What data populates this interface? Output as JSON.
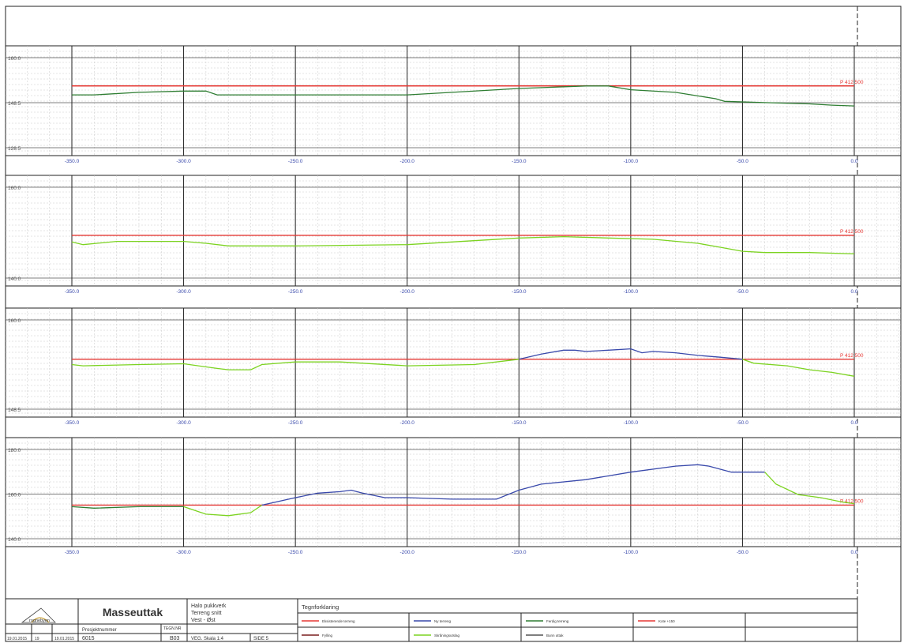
{
  "sheet": {
    "title": "Masseuttak",
    "logo_text": "rognebyen",
    "project_lines": [
      "Halo pukkverk",
      "Terreng snitt",
      "Vest - Øst"
    ],
    "meta": {
      "date_left": "19.01.2015",
      "revision": "19",
      "date_right": "19.01.2015",
      "project_label": "Prosjektnummer",
      "project_number": "6015",
      "drawing_label": "TEGN.NR",
      "drawing_number": "B03",
      "scale": "VEG. Skala 1:4",
      "sheet": "SIDE 5"
    },
    "legend_title": "Tegnforklaring",
    "legend": [
      {
        "label": "Eksisterende terreng",
        "color": "#e53935"
      },
      {
        "label": "Ny terreng",
        "color": "#3949ab"
      },
      {
        "label": "Ferdig terreng",
        "color": "#2e7d32"
      },
      {
        "label": "Kote +150",
        "color": "#e53935"
      },
      {
        "label": "Fylling",
        "color": "#7a1f1f"
      },
      {
        "label": "Skråningsutslag",
        "color": "#7cd321"
      },
      {
        "label": "Bunn uttak",
        "color": "#555555"
      }
    ]
  },
  "chart_data": [
    {
      "type": "line",
      "xlim": [
        -350,
        0
      ],
      "ylim": [
        125,
        165
      ],
      "ytick_labels": [
        "160.0",
        "148.5",
        "128.5"
      ],
      "xtick_labels": [
        "-350.0",
        "-300.0",
        "-250.0",
        "-200.0",
        "-150.0",
        "-100.0",
        "-50.0",
        "0.0"
      ],
      "ref_level": 150,
      "ref_label": "P 412.500",
      "series": [
        {
          "color": "#2e7d32",
          "x": [
            -350,
            -340,
            -320,
            -300,
            -290,
            -285,
            -280,
            -250,
            -200,
            -150,
            -120,
            -110,
            -100,
            -80,
            -62,
            -58,
            -40,
            -20,
            -10,
            0
          ],
          "y": [
            146.5,
            146.5,
            147.5,
            148.0,
            148.0,
            146.5,
            146.5,
            146.5,
            146.5,
            149.0,
            150.0,
            150.0,
            148.5,
            147.5,
            145.0,
            144.0,
            143.5,
            143.0,
            142.5,
            142.2
          ]
        }
      ]
    },
    {
      "type": "line",
      "xlim": [
        -350,
        0
      ],
      "ylim": [
        133,
        172
      ],
      "ytick_labels": [
        "160.0",
        "140.0"
      ],
      "xtick_labels": [
        "-350.0",
        "-300.0",
        "-250.0",
        "-200.0",
        "-150.0",
        "-100.0",
        "-50.0",
        "0.0"
      ],
      "ref_level": 150,
      "ref_label": "P 412.500",
      "series": [
        {
          "color": "#7cd321",
          "x": [
            -350,
            -345,
            -330,
            -300,
            -290,
            -280,
            -250,
            -200,
            -150,
            -130,
            -110,
            -90,
            -70,
            -60,
            -50,
            -40,
            -20,
            0
          ],
          "y": [
            147.5,
            146.5,
            147.7,
            147.7,
            147.0,
            146.0,
            146.0,
            146.5,
            149.0,
            149.5,
            149.0,
            148.5,
            147.0,
            145.5,
            144.0,
            143.5,
            143.5,
            143.0
          ]
        }
      ]
    },
    {
      "type": "line",
      "xlim": [
        -350,
        0
      ],
      "ylim": [
        130,
        169
      ],
      "ytick_labels": [
        "160.0",
        "148.5"
      ],
      "xtick_labels": [
        "-350.0",
        "-300.0",
        "-250.0",
        "-200.0",
        "-150.0",
        "-100.0",
        "-50.0",
        "0.0"
      ],
      "ref_level": 150,
      "ref_label": "P 412.500",
      "series": [
        {
          "color": "#7cd321",
          "x": [
            -350,
            -345,
            -320,
            -300,
            -285,
            -280,
            -270,
            -265,
            -250,
            -230,
            -200,
            -170,
            -150
          ],
          "y": [
            148.0,
            147.5,
            148.0,
            148.3,
            146.5,
            146.0,
            146.0,
            148.0,
            149.0,
            149.0,
            147.5,
            148.0,
            150.0
          ]
        },
        {
          "color": "#3949ab",
          "x": [
            -150,
            -140,
            -130,
            -125,
            -120,
            -110,
            -100,
            -95,
            -90,
            -80,
            -70,
            -60,
            -50
          ],
          "y": [
            150.0,
            152.0,
            153.5,
            153.5,
            153.0,
            153.5,
            154.0,
            152.5,
            153.0,
            152.5,
            151.5,
            150.8,
            150.0
          ]
        },
        {
          "color": "#7cd321",
          "x": [
            -50,
            -45,
            -30,
            -20,
            -10,
            0
          ],
          "y": [
            150.0,
            148.5,
            147.5,
            146.0,
            145.0,
            143.5
          ]
        }
      ]
    },
    {
      "type": "line",
      "xlim": [
        -350,
        0
      ],
      "ylim": [
        138,
        172
      ],
      "ytick_labels": [
        "180.0",
        "160.0",
        "140.0"
      ],
      "xtick_labels": [
        "-350.0",
        "-300.0",
        "-250.0",
        "-200.0",
        "-150.0",
        "-100.0",
        "-50.0",
        "0.0"
      ],
      "ref_level": 150,
      "ref_label": "P 412.500",
      "series": [
        {
          "color": "#2e7d32",
          "x": [
            -350,
            -340,
            -320,
            -300
          ],
          "y": [
            149.5,
            149.0,
            149.5,
            149.5
          ]
        },
        {
          "color": "#7cd321",
          "x": [
            -300,
            -290,
            -280,
            -270,
            -265
          ],
          "y": [
            149.5,
            147.0,
            146.5,
            147.5,
            150.0
          ]
        },
        {
          "color": "#3949ab",
          "x": [
            -265,
            -250,
            -240,
            -230,
            -225,
            -220,
            -210,
            -200,
            -180,
            -160,
            -150,
            -140,
            -120,
            -100,
            -80,
            -70,
            -65,
            -55,
            -50,
            -40
          ],
          "y": [
            150.0,
            152.5,
            154.0,
            154.5,
            155.0,
            154.0,
            152.5,
            152.5,
            152.0,
            152.0,
            155.0,
            157.0,
            158.5,
            161.0,
            163.0,
            163.5,
            163.0,
            161.0,
            161.0,
            161.0
          ]
        },
        {
          "color": "#7cd321",
          "x": [
            -40,
            -35,
            -25,
            -15,
            -5,
            0
          ],
          "y": [
            161.0,
            157.0,
            153.5,
            152.5,
            151.0,
            150.5
          ]
        }
      ]
    }
  ]
}
